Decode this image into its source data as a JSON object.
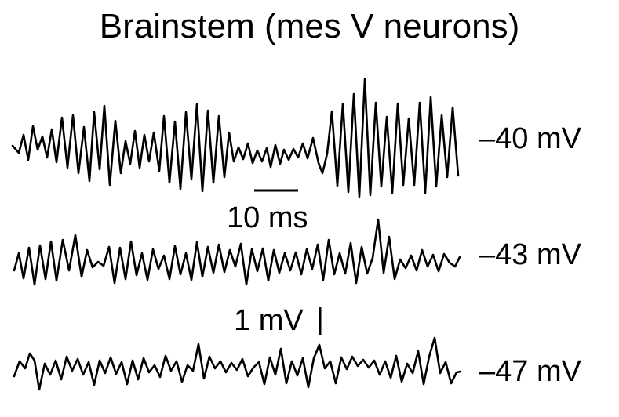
{
  "title": "Brainstem (mes V neurons)",
  "traces": [
    {
      "label": "–40 mV"
    },
    {
      "label": "–43 mV"
    },
    {
      "label": "–47 mV"
    }
  ],
  "scale_bars": {
    "time_label": "10 ms",
    "voltage_label": "1 mV"
  },
  "colors": {
    "trace": "#000000",
    "background": "#ffffff"
  }
}
